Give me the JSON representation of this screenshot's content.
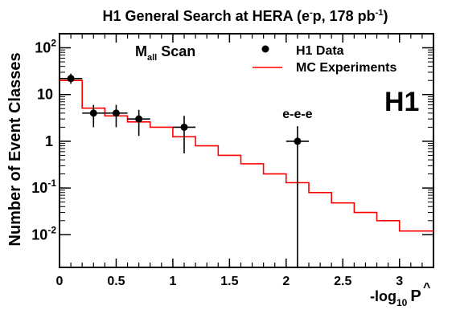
{
  "chart_data": {
    "type": "step-histogram with data points",
    "title_parts": {
      "pre": "H1 General Search at HERA (e",
      "sup1": "-",
      "mid": "p, 178 pb",
      "sup2": "-1",
      "post": ")"
    },
    "xlabel_parts": {
      "main": "-log",
      "sub": "10",
      "var": "P",
      "hat": "^"
    },
    "ylabel": "Number of Event Classes",
    "scan_label": {
      "main": "M",
      "sub": "all",
      "rest": " Scan"
    },
    "experiment_label": "H1",
    "legend": {
      "position": "top-right",
      "entries": [
        {
          "label": "H1 Data",
          "marker": "point"
        },
        {
          "label": "MC Experiments",
          "marker": "line",
          "color": "#ff0000"
        }
      ]
    },
    "annotations": [
      {
        "text": "e-e-e",
        "x": 2.1,
        "y": 2.7
      }
    ],
    "xlim": [
      0,
      3.3
    ],
    "ylim": [
      0.002,
      200
    ],
    "yscale": "log",
    "x_ticks": [
      0,
      0.5,
      1,
      1.5,
      2,
      2.5,
      3
    ],
    "x_tick_labels": [
      "0",
      "0.5",
      "1",
      "1.5",
      "2",
      "2.5",
      "3"
    ],
    "y_ticks": [
      {
        "value": 100,
        "base": "10",
        "exp": "2"
      },
      {
        "value": 10,
        "base": "10",
        "exp": ""
      },
      {
        "value": 1,
        "base": "1",
        "exp": ""
      },
      {
        "value": 0.1,
        "base": "10",
        "exp": "-1"
      },
      {
        "value": 0.01,
        "base": "10",
        "exp": "-2"
      }
    ],
    "mc_histogram": {
      "name": "MC Experiments",
      "color": "#ff0000",
      "bin_edges": [
        0,
        0.2,
        0.4,
        0.6,
        0.8,
        1.0,
        1.2,
        1.4,
        1.6,
        1.8,
        2.0,
        2.2,
        2.4,
        2.6,
        2.8,
        3.0,
        3.3
      ],
      "values": [
        20,
        5.1,
        3.5,
        2.6,
        2.0,
        1.25,
        0.8,
        0.5,
        0.33,
        0.2,
        0.13,
        0.08,
        0.048,
        0.03,
        0.02,
        0.012
      ]
    },
    "data_points": {
      "name": "H1 Data",
      "points": [
        {
          "x": 0.1,
          "y": 22,
          "xerr": 0.1,
          "ylow": 17,
          "yhigh": 28
        },
        {
          "x": 0.3,
          "y": 4,
          "xerr": 0.1,
          "ylow": 2,
          "yhigh": 6
        },
        {
          "x": 0.5,
          "y": 4,
          "xerr": 0.1,
          "ylow": 2,
          "yhigh": 6
        },
        {
          "x": 0.7,
          "y": 3,
          "xerr": 0.1,
          "ylow": 1.3,
          "yhigh": 4.7
        },
        {
          "x": 1.1,
          "y": 2,
          "xerr": 0.1,
          "ylow": 0.55,
          "yhigh": 3.5
        },
        {
          "x": 2.1,
          "y": 1,
          "xerr": 0.1,
          "ylow": 0.0,
          "yhigh": 2.1
        }
      ]
    }
  }
}
